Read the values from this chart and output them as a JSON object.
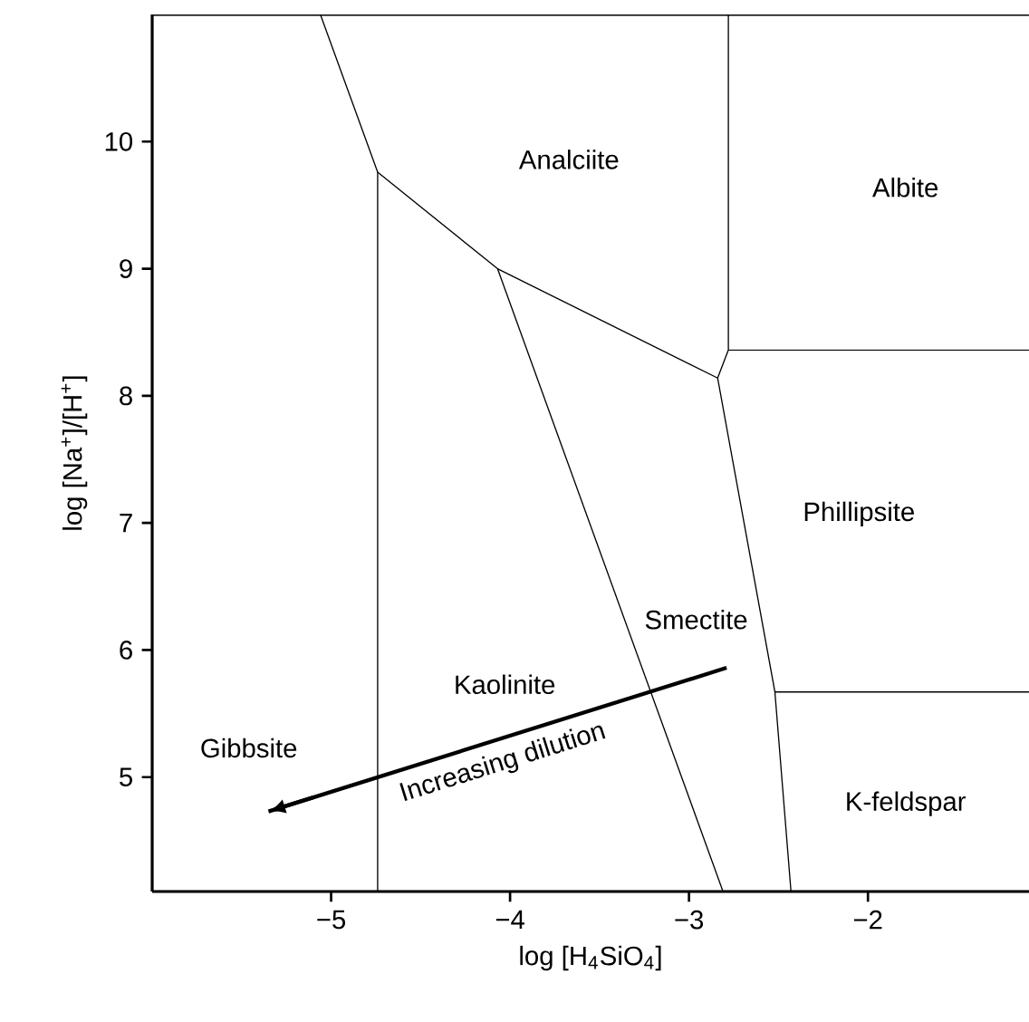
{
  "chart_data": {
    "type": "line",
    "xlabel": "log [H$_{4}$SiO$_{4}$]",
    "ylabel": "log [Na$^{+}$]/[H$^{+}$]",
    "xlim": [
      -6,
      -1.1
    ],
    "ylim": [
      4.1,
      11
    ],
    "xticks": [
      {
        "value": -5,
        "label": "−5"
      },
      {
        "value": -4,
        "label": "−4"
      },
      {
        "value": -3,
        "label": "−3"
      },
      {
        "value": -2,
        "label": "−2"
      }
    ],
    "yticks": [
      5,
      6,
      7,
      8,
      9,
      10
    ],
    "series": [
      {
        "color": "#000000",
        "x": [
          -5.06,
          -4.74,
          -4.74
        ],
        "values": [
          11,
          9.76,
          4.1
        ]
      },
      {
        "color": "#000000",
        "x": [
          -4.74,
          -4.07,
          -2.84,
          -2.78,
          -2.78
        ],
        "values": [
          9.76,
          9.0,
          8.14,
          8.36,
          11
        ]
      },
      {
        "color": "#000000",
        "x": [
          -2.78,
          -1.1
        ],
        "values": [
          8.36,
          8.36
        ]
      },
      {
        "color": "#000000",
        "x": [
          -4.07,
          -2.81
        ],
        "values": [
          9.0,
          4.1
        ]
      },
      {
        "color": "#000000",
        "x": [
          -2.84,
          -2.52,
          -2.43
        ],
        "values": [
          8.14,
          5.67,
          4.1
        ]
      },
      {
        "color": "#000000",
        "x": [
          -2.52,
          -1.1
        ],
        "values": [
          5.67,
          5.67
        ]
      },
      {
        "color": "#000000",
        "x": [
          -2.79,
          -5.35
        ],
        "values": [
          5.86,
          4.73
        ]
      }
    ],
    "annotations": [
      "Analciite",
      "Albite",
      "Phillipsite",
      "Smectite",
      "Kaolinite",
      "Gibbsite",
      "K-feldspar",
      "Increasing dilution"
    ]
  }
}
